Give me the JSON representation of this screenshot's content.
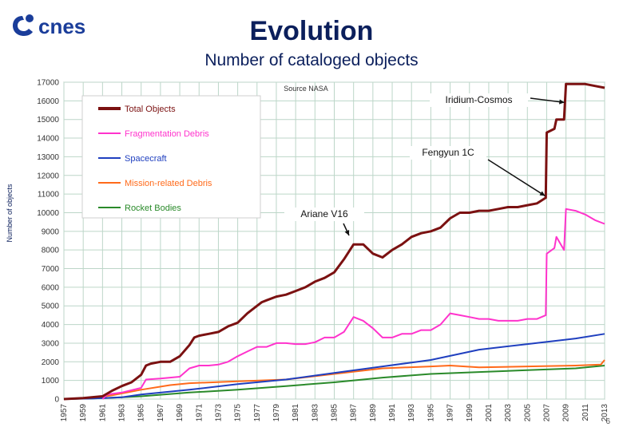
{
  "header": {
    "logo_text": "cnes",
    "title": "Evolution",
    "subtitle": "Number of cataloged objects"
  },
  "colors": {
    "title": "#0b1f5c",
    "total": "#7b1111",
    "fragmentation": "#ff33cc",
    "spacecraft": "#1f3fbf",
    "mission": "#ff6a1a",
    "rocket": "#2a8a2a",
    "grid": "#bcd6c8"
  },
  "page_number": "6",
  "chart_data": {
    "type": "line",
    "ylabel": "Number of objects",
    "source_note": "Source NASA",
    "ylim": [
      0,
      17000
    ],
    "yticks": [
      0,
      1000,
      2000,
      3000,
      4000,
      5000,
      6000,
      7000,
      8000,
      9000,
      10000,
      11000,
      12000,
      13000,
      14000,
      15000,
      16000,
      17000
    ],
    "xlim": [
      1957,
      2013
    ],
    "xticks": [
      "1957",
      "1959",
      "1961",
      "1963",
      "1965",
      "1967",
      "1969",
      "1971",
      "1973",
      "1975",
      "1977",
      "1979",
      "1981",
      "1983",
      "1985",
      "1987",
      "1989",
      "1991",
      "1993",
      "1995",
      "1997",
      "1999",
      "2001",
      "2003",
      "2005",
      "2007",
      "2009",
      "2011",
      "2013"
    ],
    "grid": true,
    "legend_position": "top-left",
    "series": [
      {
        "name": "Total Objects",
        "key": "total",
        "x": [
          1957,
          1959,
          1961,
          1961.5,
          1962,
          1963,
          1964,
          1965,
          1965.5,
          1966,
          1967,
          1968,
          1969,
          1970,
          1970.5,
          1971,
          1972,
          1973,
          1974,
          1975,
          1976,
          1977,
          1977.5,
          1978,
          1979,
          1980,
          1981,
          1982,
          1983,
          1984,
          1985,
          1986,
          1987,
          1988,
          1989,
          1990,
          1991,
          1992,
          1993,
          1994,
          1995,
          1996,
          1997,
          1998,
          1999,
          2000,
          2001,
          2002,
          2003,
          2004,
          2005,
          2006,
          2006.9,
          2007,
          2007.8,
          2008,
          2008.8,
          2009,
          2010,
          2011,
          2012,
          2013
        ],
        "y": [
          0,
          50,
          150,
          300,
          450,
          700,
          900,
          1300,
          1800,
          1900,
          2000,
          2000,
          2300,
          2900,
          3300,
          3400,
          3500,
          3600,
          3900,
          4100,
          4600,
          5000,
          5200,
          5300,
          5500,
          5600,
          5800,
          6000,
          6300,
          6500,
          6800,
          7500,
          8300,
          8300,
          7800,
          7600,
          8000,
          8300,
          8700,
          8900,
          9000,
          9200,
          9700,
          10000,
          10000,
          10100,
          10100,
          10200,
          10300,
          10300,
          10400,
          10500,
          10800,
          14300,
          14500,
          15000,
          15000,
          16900,
          16900,
          16900,
          16800,
          16700
        ]
      },
      {
        "name": "Fragmentation Debris",
        "key": "fragmentation",
        "x": [
          1961,
          1961.5,
          1963,
          1965,
          1965.5,
          1967,
          1969,
          1970,
          1971,
          1972,
          1973,
          1974,
          1975,
          1976,
          1977,
          1978,
          1979,
          1980,
          1981,
          1982,
          1983,
          1984,
          1985,
          1986,
          1987,
          1988,
          1989,
          1990,
          1991,
          1992,
          1993,
          1994,
          1995,
          1996,
          1997,
          1998,
          1999,
          2000,
          2001,
          2002,
          2003,
          2004,
          2005,
          2006,
          2006.9,
          2007,
          2007.8,
          2008,
          2008.8,
          2009,
          2010,
          2011,
          2012,
          2013
        ],
        "y": [
          0,
          250,
          350,
          600,
          1050,
          1100,
          1200,
          1650,
          1800,
          1800,
          1850,
          2000,
          2300,
          2550,
          2800,
          2800,
          3000,
          3000,
          2950,
          2950,
          3050,
          3300,
          3300,
          3600,
          4400,
          4200,
          3800,
          3300,
          3300,
          3500,
          3500,
          3700,
          3700,
          4000,
          4600,
          4500,
          4400,
          4300,
          4300,
          4200,
          4200,
          4200,
          4300,
          4300,
          4500,
          7800,
          8100,
          8700,
          8000,
          10200,
          10100,
          9900,
          9600,
          9400
        ]
      },
      {
        "name": "Spacecraft",
        "key": "spacecraft",
        "x": [
          1957,
          1960,
          1963,
          1965,
          1970,
          1975,
          1980,
          1985,
          1990,
          1995,
          2000,
          2005,
          2010,
          2013
        ],
        "y": [
          0,
          30,
          100,
          250,
          500,
          800,
          1050,
          1400,
          1750,
          2100,
          2650,
          2950,
          3250,
          3500
        ]
      },
      {
        "name": "Mission-related Debris",
        "key": "mission",
        "x": [
          1957,
          1960,
          1962,
          1965,
          1968,
          1970,
          1975,
          1980,
          1985,
          1990,
          1995,
          1997,
          2000,
          2005,
          2010,
          2012.6,
          2013
        ],
        "y": [
          0,
          50,
          200,
          500,
          750,
          850,
          950,
          1050,
          1350,
          1650,
          1750,
          1800,
          1700,
          1750,
          1800,
          1850,
          2100
        ]
      },
      {
        "name": "Rocket Bodies",
        "key": "rocket",
        "x": [
          1957,
          1960,
          1963,
          1965,
          1970,
          1975,
          1980,
          1985,
          1990,
          1995,
          2000,
          2005,
          2010,
          2013
        ],
        "y": [
          0,
          30,
          100,
          150,
          350,
          500,
          700,
          900,
          1150,
          1350,
          1450,
          1550,
          1650,
          1800
        ]
      }
    ],
    "annotations": [
      {
        "text": "Iridium-Cosmos",
        "x": 2009,
        "y": 16900
      },
      {
        "text": "Fengyun 1C",
        "x": 2007,
        "y": 11800
      },
      {
        "text": "Ariane V16",
        "x": 1987,
        "y": 8500
      }
    ]
  }
}
